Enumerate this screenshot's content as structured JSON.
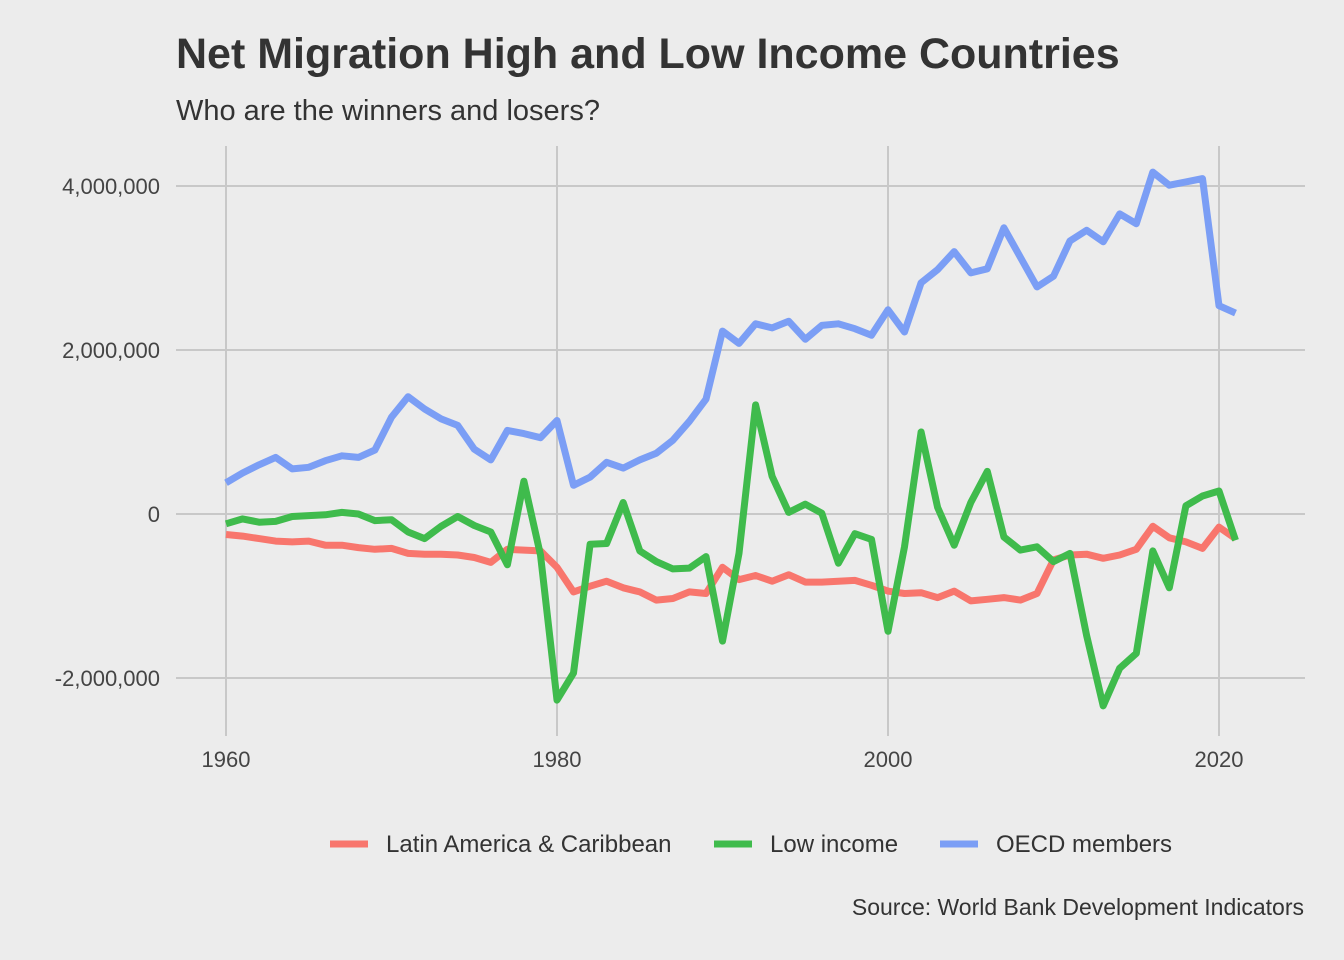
{
  "title": "Net Migration High and Low Income Countries",
  "subtitle": "Who are the winners and losers?",
  "caption": "Source: World Bank Development Indicators",
  "chart_data": {
    "type": "line",
    "title": "Net Migration High and Low Income Countries",
    "subtitle": "Who are the winners and losers?",
    "xlabel": "",
    "ylabel": "",
    "xlim": [
      1956,
      2025
    ],
    "ylim": [
      -2700000,
      4500000
    ],
    "x_ticks": [
      1960,
      1980,
      2000,
      2020
    ],
    "y_ticks": [
      -2000000,
      0,
      2000000,
      4000000
    ],
    "x_tick_labels": [
      "1960",
      "1980",
      "2000",
      "2020"
    ],
    "y_tick_labels": [
      "-2,000,000",
      "0",
      "2,000,000",
      "4,000,000"
    ],
    "grid": true,
    "legend_position": "bottom",
    "x": [
      1960,
      1961,
      1962,
      1963,
      1964,
      1965,
      1966,
      1967,
      1968,
      1969,
      1970,
      1971,
      1972,
      1973,
      1974,
      1975,
      1976,
      1977,
      1978,
      1979,
      1980,
      1981,
      1982,
      1983,
      1984,
      1985,
      1986,
      1987,
      1988,
      1989,
      1990,
      1991,
      1992,
      1993,
      1994,
      1995,
      1996,
      1997,
      1998,
      1999,
      2000,
      2001,
      2002,
      2003,
      2004,
      2005,
      2006,
      2007,
      2008,
      2009,
      2010,
      2011,
      2012,
      2013,
      2014,
      2015,
      2016,
      2017,
      2018,
      2019,
      2020,
      2021
    ],
    "series": [
      {
        "name": "Latin America & Caribbean",
        "color": "#f8766d",
        "values": [
          -250000,
          -270000,
          -300000,
          -330000,
          -340000,
          -330000,
          -380000,
          -380000,
          -410000,
          -430000,
          -420000,
          -480000,
          -490000,
          -490000,
          -500000,
          -530000,
          -590000,
          -430000,
          -440000,
          -450000,
          -650000,
          -950000,
          -880000,
          -820000,
          -900000,
          -950000,
          -1050000,
          -1030000,
          -950000,
          -970000,
          -650000,
          -800000,
          -750000,
          -820000,
          -740000,
          -830000,
          -830000,
          -820000,
          -810000,
          -870000,
          -940000,
          -970000,
          -960000,
          -1020000,
          -940000,
          -1060000,
          -1040000,
          -1020000,
          -1050000,
          -970000,
          -560000,
          -500000,
          -490000,
          -540000,
          -500000,
          -430000,
          -150000,
          -290000,
          -340000,
          -420000,
          -160000,
          -300000
        ]
      },
      {
        "name": "Low income",
        "color": "#3fbb4c",
        "values": [
          -120000,
          -60000,
          -100000,
          -90000,
          -30000,
          -20000,
          -10000,
          20000,
          0,
          -80000,
          -70000,
          -220000,
          -300000,
          -150000,
          -30000,
          -140000,
          -220000,
          -620000,
          400000,
          -500000,
          -2270000,
          -1940000,
          -370000,
          -360000,
          140000,
          -450000,
          -580000,
          -670000,
          -660000,
          -520000,
          -1550000,
          -480000,
          1330000,
          460000,
          20000,
          120000,
          10000,
          -600000,
          -240000,
          -310000,
          -1430000,
          -400000,
          1000000,
          80000,
          -380000,
          140000,
          520000,
          -280000,
          -440000,
          -400000,
          -580000,
          -480000,
          -1480000,
          -2340000,
          -1880000,
          -1700000,
          -450000,
          -900000,
          100000,
          220000,
          280000,
          -320000
        ]
      },
      {
        "name": "OECD members",
        "color": "#7b9ef5",
        "values": [
          380000,
          500000,
          600000,
          690000,
          550000,
          570000,
          650000,
          710000,
          690000,
          780000,
          1180000,
          1430000,
          1280000,
          1160000,
          1080000,
          790000,
          660000,
          1020000,
          980000,
          930000,
          1140000,
          350000,
          450000,
          630000,
          560000,
          660000,
          740000,
          900000,
          1130000,
          1400000,
          2230000,
          2080000,
          2320000,
          2270000,
          2350000,
          2130000,
          2300000,
          2320000,
          2260000,
          2180000,
          2490000,
          2220000,
          2820000,
          2980000,
          3200000,
          2940000,
          2990000,
          3490000,
          3130000,
          2770000,
          2900000,
          3330000,
          3460000,
          3320000,
          3660000,
          3540000,
          4170000,
          4010000,
          4050000,
          4090000,
          2540000,
          2450000
        ]
      }
    ]
  }
}
